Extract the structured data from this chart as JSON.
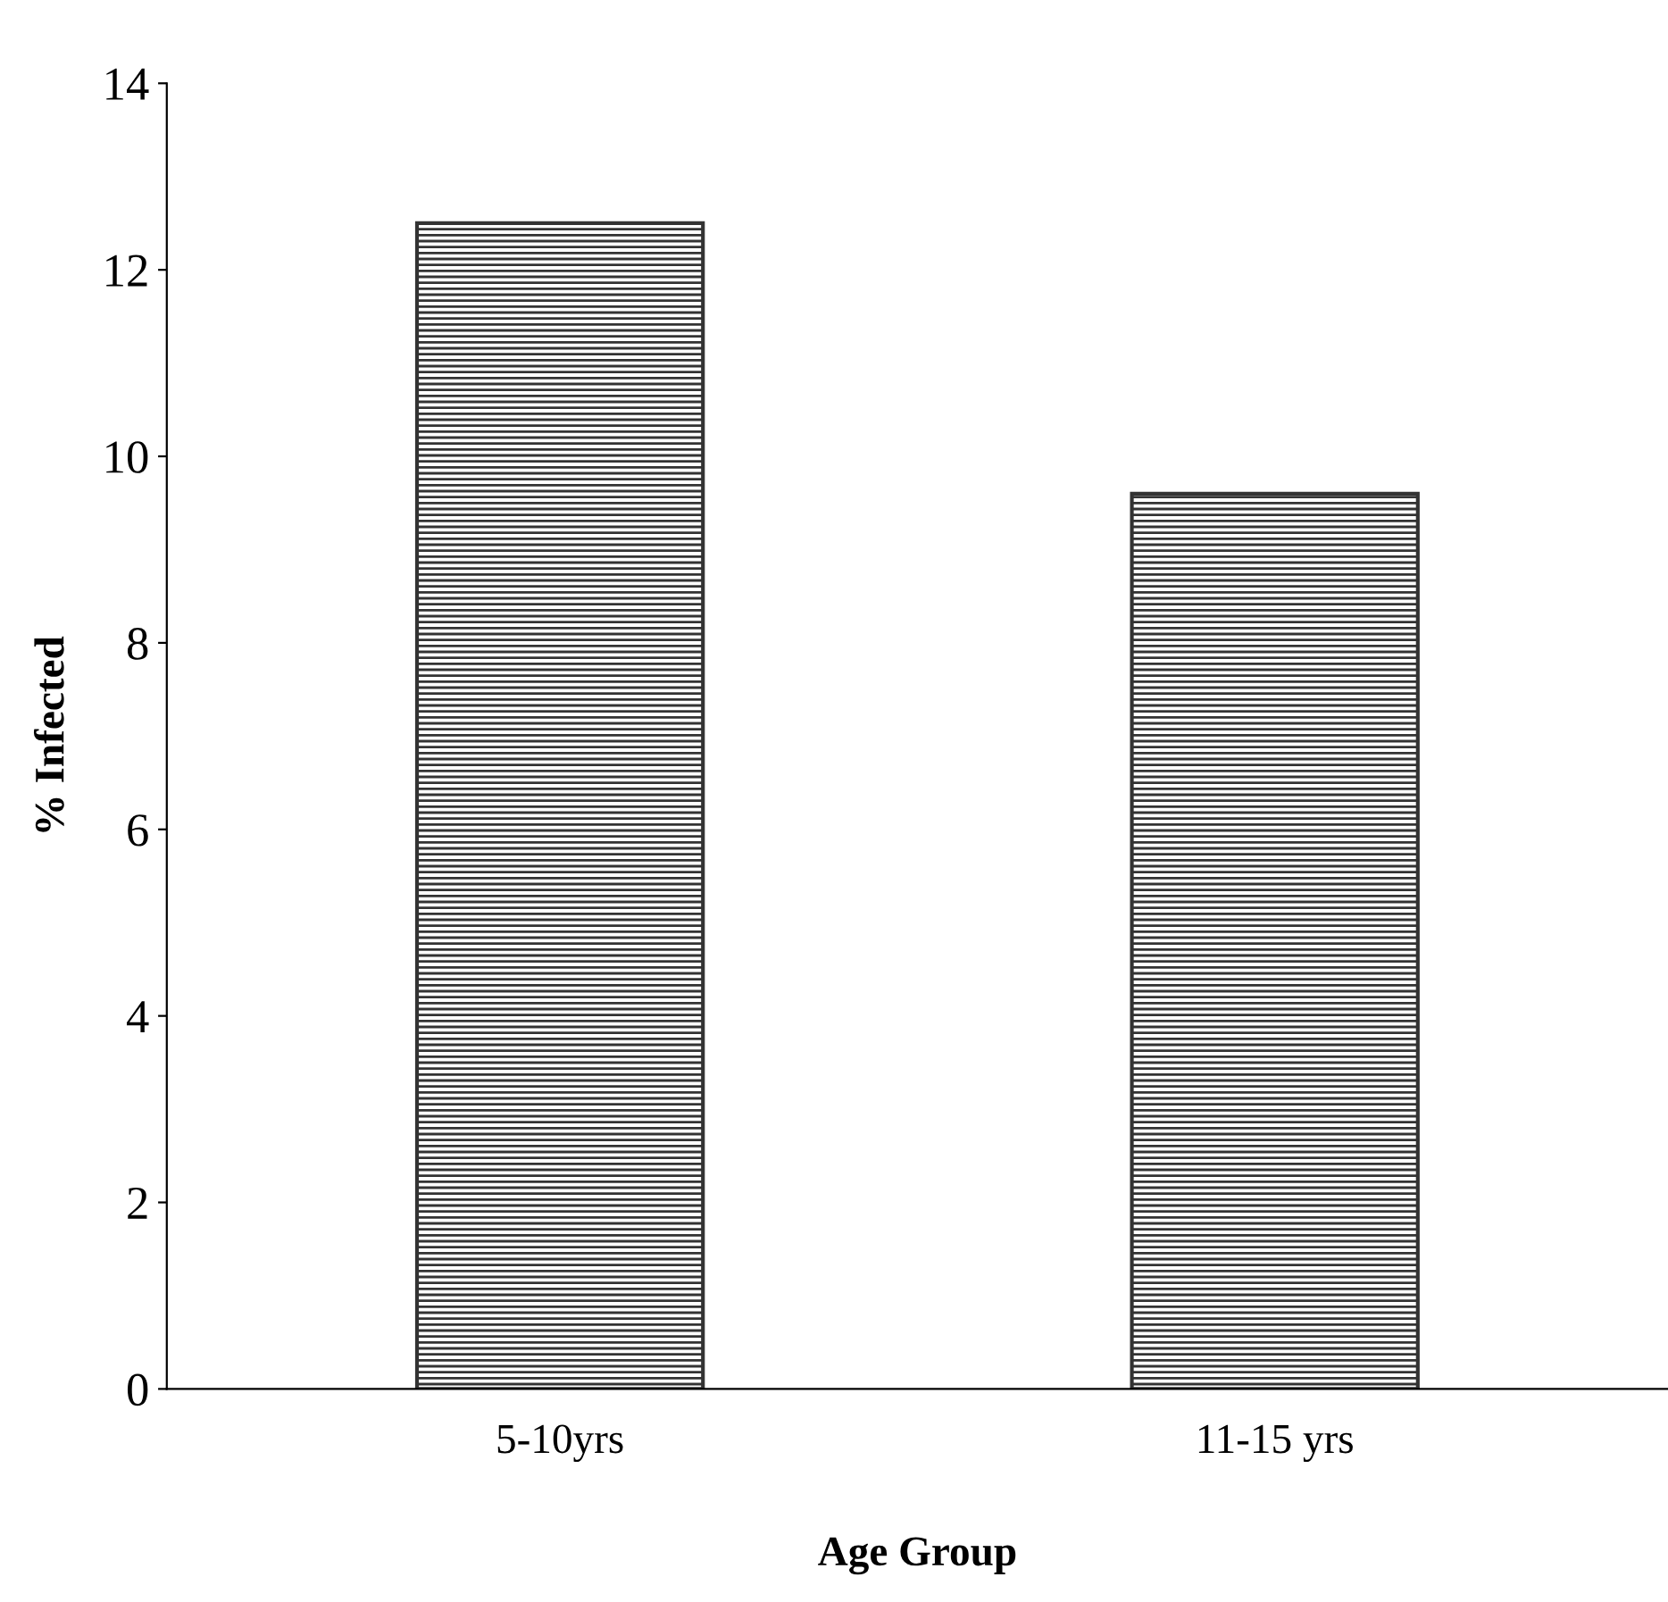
{
  "chart_data": {
    "type": "bar",
    "xlabel": "Age Group",
    "ylabel": "% Infected",
    "categories": [
      "5-10yrs",
      "11-15 yrs"
    ],
    "values": [
      12.5,
      9.6
    ],
    "color": "#333333",
    "ylim": [
      0,
      14
    ],
    "yticks": [
      0,
      2,
      4,
      6,
      8,
      10,
      12,
      14
    ],
    "grid": false,
    "legend": false
  }
}
